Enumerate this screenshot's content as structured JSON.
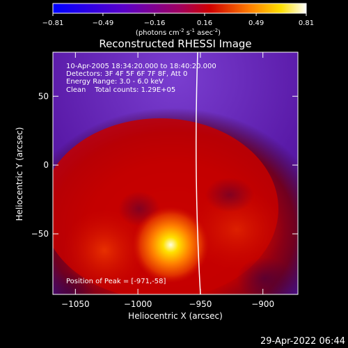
{
  "chart_data": {
    "type": "heatmap",
    "title": "Reconstructed RHESSI Image",
    "xlabel": "Heliocentric X (arcsec)",
    "ylabel": "Heliocentric Y (arcsec)",
    "xlim": [
      -1068,
      -872
    ],
    "ylim": [
      -94,
      82
    ],
    "xticks": [
      -1050,
      -1000,
      -950,
      -900
    ],
    "yticks": [
      -50,
      0,
      50
    ],
    "colorbar": {
      "ticks": [
        "-0.81",
        "-0.49",
        "-0.16",
        "0.16",
        "0.49",
        "0.81"
      ],
      "range": [
        -0.81,
        0.81
      ],
      "unit_prefix": "(photons cm",
      "unit_sup1": "-2",
      "unit_mid": " s",
      "unit_sup2": "-1",
      "unit_mid2": " asec",
      "unit_sup3": "-2",
      "unit_suffix": ")"
    },
    "annotation_lines": [
      "10-Apr-2005 18:34:20.000 to 18:40:20.000",
      "Detectors: 3F 4F 5F 6F 7F 8F, Att 0",
      "Energy Range: 3.0 - 6.0 keV",
      "Clean    Total counts: 1.29E+05"
    ],
    "peak_label": "Position of Peak = [-971,-58]",
    "peak": [
      -971,
      -58
    ],
    "limb_line": true
  },
  "timestamp": "29-Apr-2022 06:44"
}
